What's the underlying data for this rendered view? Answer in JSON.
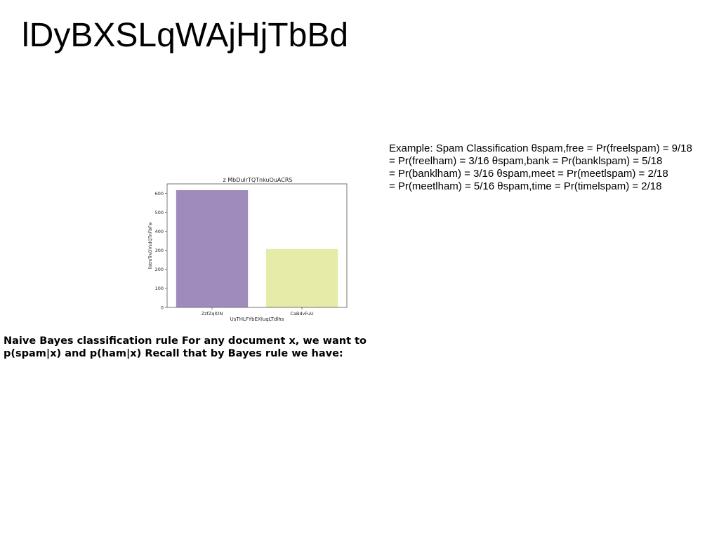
{
  "slide": {
    "title": "lDyBXSLqWAjHjTbBd"
  },
  "example": {
    "lines": [
      "Example: Spam Classification θspam,free = Pr(freelspam) = 9/18",
      "= Pr(freelham) = 3/16 θspam,bank = Pr(banklspam) = 5/18",
      "= Pr(banklham) = 3/16 θspam,meet = Pr(meetlspam) = 2/18",
      "= Pr(meetlham) = 5/16 θspam,time = Pr(timelspam) = 2/18"
    ]
  },
  "rule": {
    "lines": [
      "Naive Bayes classification rule For any document x, we want to",
      "p(spam|x) and p(ham|x) Recall that by Bayes rule we have:"
    ]
  },
  "chart_data": {
    "type": "bar",
    "title": "z MbDulrTQTnkuOuACRS",
    "xlabel": "UsTHLFYbEXluqLTdlhs",
    "ylabel": "llstmTrvDVsdQTnFbFw",
    "categories": [
      "ZzfZqlON",
      "CaBdvFuU"
    ],
    "values": [
      617,
      307
    ],
    "ylim": [
      0,
      650
    ],
    "yticks": [
      0,
      100,
      200,
      300,
      400,
      500,
      600
    ],
    "colors": [
      "#a08bbd",
      "#e6eba8"
    ],
    "grid": false
  }
}
